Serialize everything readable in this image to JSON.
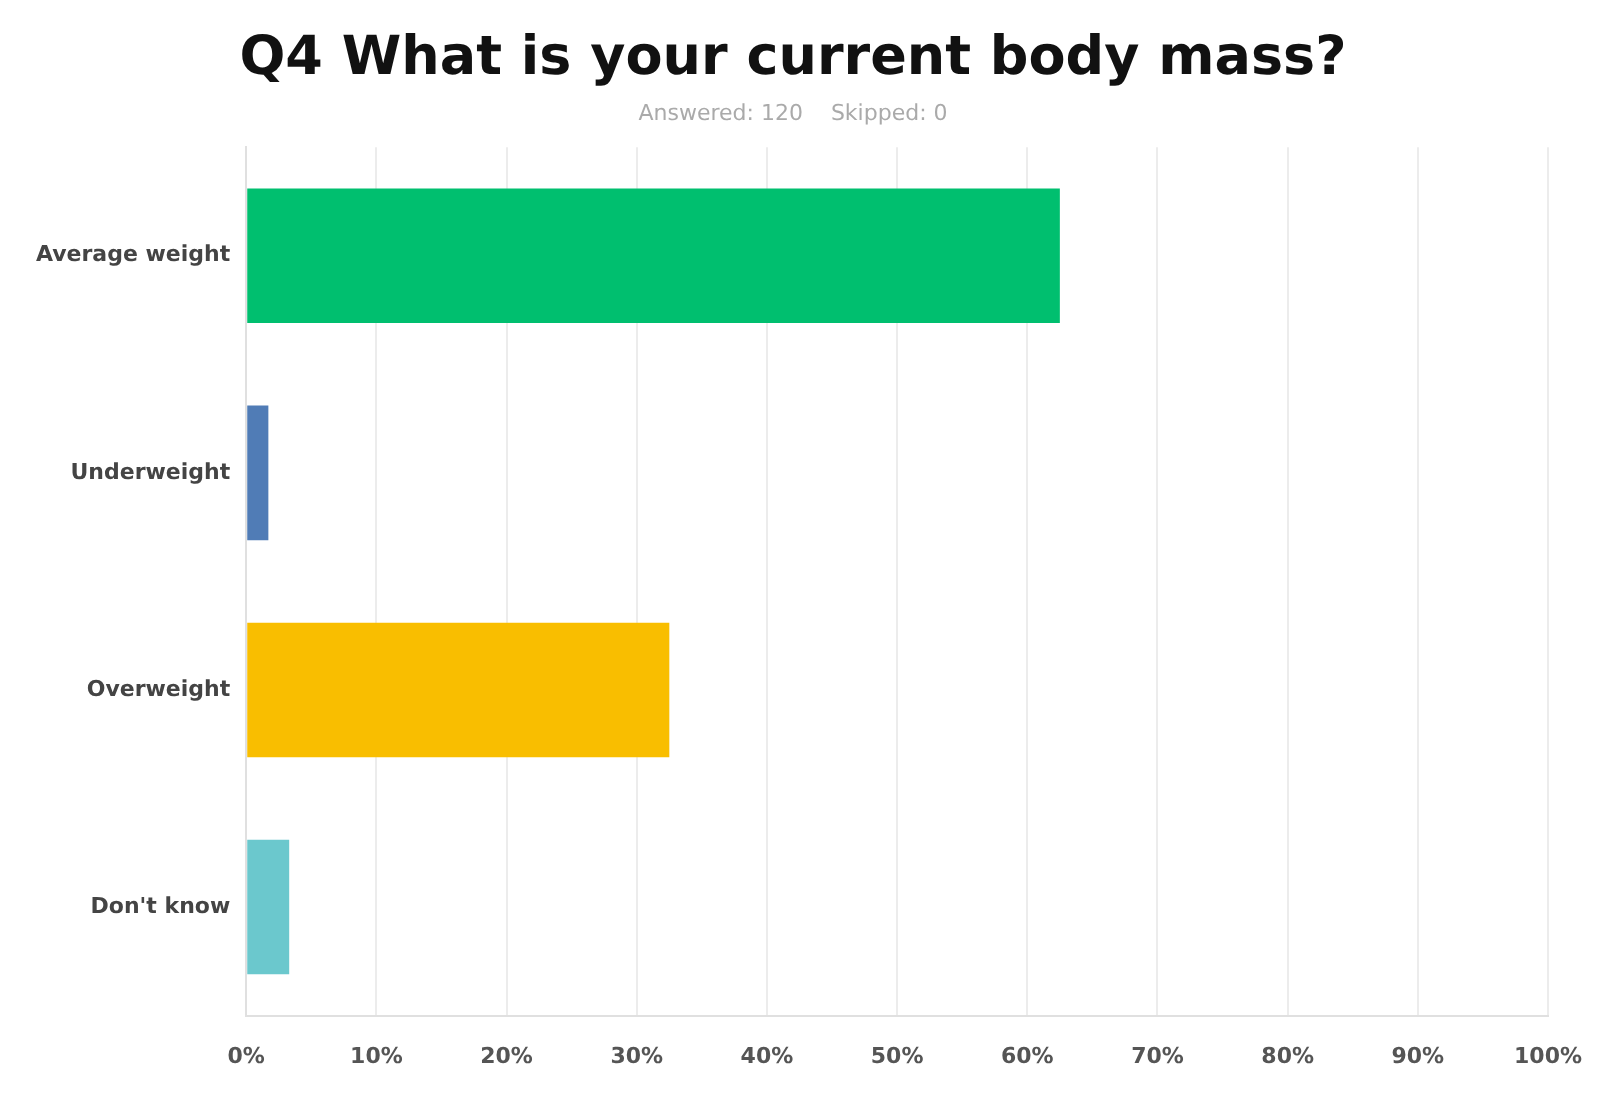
{
  "chart_data": {
    "type": "bar",
    "orientation": "horizontal",
    "title": "Q4 What is your current body mass?",
    "subtitle": "Answered: 120    Skipped: 0",
    "categories": [
      "Average weight",
      "Underweight",
      "Overweight",
      "Don't know"
    ],
    "values": [
      62.5,
      1.7,
      32.5,
      3.3
    ],
    "colors": [
      "#00bf6f",
      "#507cb6",
      "#f9be00",
      "#6bc8cd"
    ],
    "xlim": [
      0,
      100
    ],
    "xticks": [
      {
        "value": 0,
        "label": "0%"
      },
      {
        "value": 10,
        "label": "10%"
      },
      {
        "value": 20,
        "label": "20%"
      },
      {
        "value": 30,
        "label": "30%"
      },
      {
        "value": 40,
        "label": "40%"
      },
      {
        "value": 50,
        "label": "50%"
      },
      {
        "value": 60,
        "label": "60%"
      },
      {
        "value": 70,
        "label": "70%"
      },
      {
        "value": 80,
        "label": "80%"
      },
      {
        "value": 90,
        "label": "90%"
      },
      {
        "value": 100,
        "label": "100%"
      }
    ],
    "grid": "x",
    "legend": false
  }
}
